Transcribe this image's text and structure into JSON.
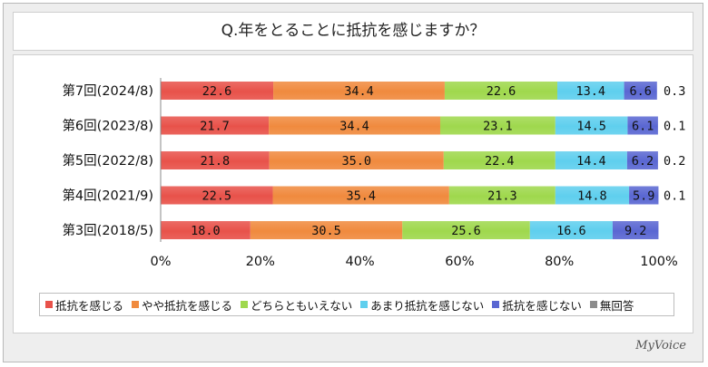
{
  "title": "Q.年をとることに抵抗を感じますか？",
  "logo": "MyVoice",
  "colors": [
    "#e8524a",
    "#f08a3e",
    "#9fd84d",
    "#5fcfee",
    "#5a67d2",
    "#8c8c8c"
  ],
  "legend": [
    "抵抗を感じる",
    "やや抵抗を感じる",
    "どちらともいえない",
    "あまり抵抗を感じない",
    "抵抗を感じない",
    "無回答"
  ],
  "chart_data": {
    "type": "bar",
    "orientation": "horizontal",
    "stacked": true,
    "categories": [
      "第7回(2024/8)",
      "第6回(2023/8)",
      "第5回(2022/8)",
      "第4回(2021/9)",
      "第3回(2018/5)"
    ],
    "series": [
      {
        "name": "抵抗を感じる",
        "values": [
          22.6,
          21.7,
          21.8,
          22.5,
          18.0
        ]
      },
      {
        "name": "やや抵抗を感じる",
        "values": [
          34.4,
          34.4,
          35.0,
          35.4,
          30.5
        ]
      },
      {
        "name": "どちらともいえない",
        "values": [
          22.6,
          23.1,
          22.4,
          21.3,
          25.6
        ]
      },
      {
        "name": "あまり抵抗を感じない",
        "values": [
          13.4,
          14.5,
          14.4,
          14.8,
          16.6
        ]
      },
      {
        "name": "抵抗を感じない",
        "values": [
          6.6,
          6.1,
          6.2,
          5.9,
          9.2
        ]
      },
      {
        "name": "無回答",
        "values": [
          0.3,
          0.1,
          0.2,
          0.1,
          null
        ]
      }
    ],
    "xlim": [
      0,
      100
    ],
    "xticks": [
      "0%",
      "20%",
      "40%",
      "60%",
      "80%",
      "100%"
    ],
    "legend_position": "bottom",
    "grid": false
  }
}
